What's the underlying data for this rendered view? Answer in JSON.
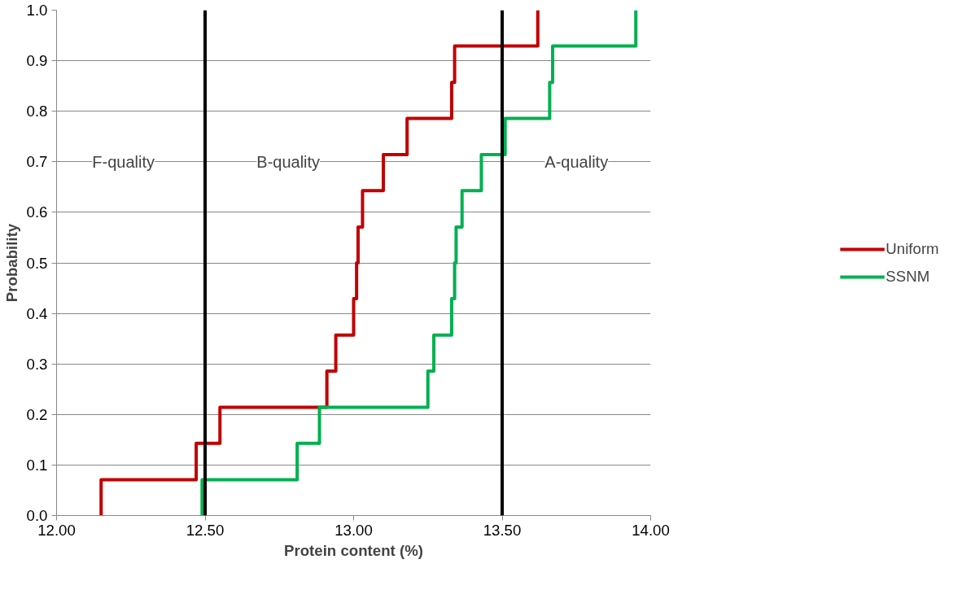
{
  "chart_data": {
    "type": "step",
    "xlabel": "Protein content (%)",
    "ylabel": "Probability",
    "xlim": [
      12.0,
      14.0
    ],
    "ylim": [
      0.0,
      1.0
    ],
    "xticks": [
      {
        "value": 12.0,
        "label": "12.00"
      },
      {
        "value": 12.5,
        "label": "12.50"
      },
      {
        "value": 13.0,
        "label": "13.00"
      },
      {
        "value": 13.5,
        "label": "13.50"
      },
      {
        "value": 14.0,
        "label": "14.00"
      }
    ],
    "yticks": [
      {
        "value": 0,
        "label": "0.0"
      },
      {
        "value": 0.1,
        "label": "0.1"
      },
      {
        "value": 0.2,
        "label": "0.2"
      },
      {
        "value": 0.3,
        "label": "0.3"
      },
      {
        "value": 0.4,
        "label": "0.4"
      },
      {
        "value": 0.5,
        "label": "0.5"
      },
      {
        "value": 0.6,
        "label": "0.6"
      },
      {
        "value": 0.7,
        "label": "0.7"
      },
      {
        "value": 0.8,
        "label": "0.8"
      },
      {
        "value": 0.9,
        "label": "0.9"
      },
      {
        "value": 1.0,
        "label": "1.0"
      }
    ],
    "grid": "y",
    "legend": "right",
    "series": [
      {
        "name": "Uniform",
        "color": "#c00000",
        "x": [
          12.15,
          12.15,
          12.47,
          12.55,
          12.91,
          12.94,
          13.0,
          13.01,
          13.015,
          13.03,
          13.1,
          13.18,
          13.33,
          13.34,
          13.62
        ],
        "values": [
          0,
          0.071,
          0.143,
          0.214,
          0.286,
          0.357,
          0.429,
          0.5,
          0.571,
          0.643,
          0.714,
          0.786,
          0.857,
          0.929,
          1.0
        ]
      },
      {
        "name": "SSNM",
        "color": "#00b050",
        "x": [
          12.49,
          12.49,
          12.81,
          12.885,
          13.25,
          13.27,
          13.33,
          13.34,
          13.345,
          13.365,
          13.43,
          13.51,
          13.66,
          13.67,
          13.95
        ],
        "values": [
          0,
          0.071,
          0.143,
          0.214,
          0.286,
          0.357,
          0.429,
          0.5,
          0.571,
          0.643,
          0.714,
          0.786,
          0.857,
          0.929,
          1.0
        ]
      }
    ],
    "ref_lines": [
      {
        "axis": "x",
        "value": 12.5,
        "color": "#000000"
      },
      {
        "axis": "x",
        "value": 13.5,
        "color": "#000000"
      }
    ],
    "annotations": [
      "F-quality",
      "B-quality",
      "A-quality"
    ]
  }
}
